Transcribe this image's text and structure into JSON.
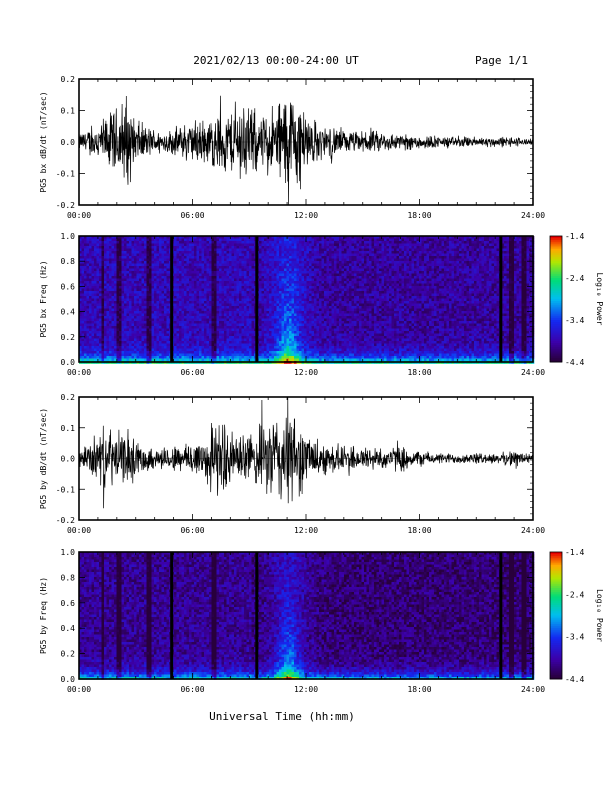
{
  "header": {
    "title": "2021/02/13  00:00-24:00 UT",
    "page": "Page 1/1"
  },
  "xlabel": "Universal Time (hh:mm)",
  "colors": {
    "trace": "#000000",
    "background": "#ffffff"
  },
  "chart_data": [
    {
      "type": "line",
      "ylabel": "PG5 bx dB/dt (nT/sec)",
      "xlim": [
        0,
        24
      ],
      "ylim": [
        -0.2,
        0.2
      ],
      "x_ticks": [
        "00:00",
        "06:00",
        "12:00",
        "18:00",
        "24:00"
      ],
      "y_ticks": [
        "-0.2",
        "-0.1",
        "0.0",
        "0.1",
        "0.2"
      ],
      "envelope": {
        "hours": [
          0,
          0.5,
          1,
          1.5,
          2,
          2.5,
          3,
          3.5,
          4,
          4.5,
          5,
          5.5,
          6,
          6.5,
          7,
          7.5,
          8,
          8.5,
          9,
          9.5,
          10,
          10.5,
          11,
          11.5,
          12,
          12.5,
          13,
          13.5,
          14,
          15,
          16,
          17,
          18,
          19,
          20,
          21,
          22,
          23,
          24
        ],
        "amplitude": [
          0.03,
          0.05,
          0.07,
          0.1,
          0.13,
          0.18,
          0.09,
          0.06,
          0.05,
          0.04,
          0.05,
          0.07,
          0.08,
          0.09,
          0.09,
          0.12,
          0.12,
          0.14,
          0.15,
          0.1,
          0.12,
          0.16,
          0.2,
          0.19,
          0.12,
          0.08,
          0.06,
          0.06,
          0.04,
          0.04,
          0.04,
          0.03,
          0.03,
          0.02,
          0.02,
          0.02,
          0.02,
          0.02,
          0.01
        ]
      }
    },
    {
      "type": "heatmap",
      "ylabel": "PG5 bx Freq (Hz)",
      "xlim": [
        0,
        24
      ],
      "ylim": [
        0,
        1.0
      ],
      "x_ticks": [
        "00:00",
        "06:00",
        "12:00",
        "18:00",
        "24:00"
      ],
      "y_ticks": [
        "0.0",
        "0.2",
        "0.4",
        "0.6",
        "0.8",
        "1.0"
      ],
      "colorbar": {
        "label": "Log₁₀ Power",
        "ticks": [
          "-1.4",
          "-2.4",
          "-3.4",
          "-4.4"
        ],
        "range": [
          -4.4,
          -1.4
        ]
      },
      "data_gaps_hours": [
        4.9,
        9.4,
        22.3
      ],
      "dark_bands_hours": [
        1.2,
        2.0,
        3.6,
        7.1,
        22.8,
        23.5
      ]
    },
    {
      "type": "line",
      "ylabel": "PG5 by dB/dt (nT/sec)",
      "xlim": [
        0,
        24
      ],
      "ylim": [
        -0.2,
        0.2
      ],
      "x_ticks": [
        "00:00",
        "06:00",
        "12:00",
        "18:00",
        "24:00"
      ],
      "y_ticks": [
        "-0.2",
        "-0.1",
        "0.0",
        "0.1",
        "0.2"
      ],
      "envelope": {
        "hours": [
          0,
          0.5,
          1,
          1.5,
          2,
          2.5,
          3,
          3.5,
          4,
          4.5,
          5,
          5.5,
          6,
          6.5,
          7,
          7.5,
          8,
          8.5,
          9,
          9.5,
          10,
          10.5,
          11,
          11.5,
          12,
          12.5,
          13,
          13.5,
          14,
          15,
          16,
          17,
          18,
          19,
          20,
          21,
          22,
          23,
          24
        ],
        "amplitude": [
          0.03,
          0.06,
          0.1,
          0.12,
          0.1,
          0.09,
          0.07,
          0.05,
          0.04,
          0.04,
          0.05,
          0.06,
          0.07,
          0.09,
          0.12,
          0.15,
          0.1,
          0.1,
          0.09,
          0.12,
          0.15,
          0.18,
          0.2,
          0.17,
          0.1,
          0.08,
          0.06,
          0.06,
          0.05,
          0.05,
          0.04,
          0.05,
          0.03,
          0.02,
          0.02,
          0.02,
          0.02,
          0.03,
          0.02
        ]
      }
    },
    {
      "type": "heatmap",
      "ylabel": "PG5 by Freq (Hz)",
      "xlim": [
        0,
        24
      ],
      "ylim": [
        0,
        1.0
      ],
      "x_ticks": [
        "00:00",
        "06:00",
        "12:00",
        "18:00",
        "24:00"
      ],
      "y_ticks": [
        "0.0",
        "0.2",
        "0.4",
        "0.6",
        "0.8",
        "1.0"
      ],
      "colorbar": {
        "label": "Log₁₀ Power",
        "ticks": [
          "-1.4",
          "-2.4",
          "-3.4",
          "-4.4"
        ],
        "range": [
          -4.4,
          -1.4
        ]
      },
      "data_gaps_hours": [
        4.9,
        9.4,
        22.3
      ],
      "dark_bands_hours": [
        1.2,
        2.0,
        3.6,
        7.1,
        22.8,
        23.5
      ]
    }
  ]
}
